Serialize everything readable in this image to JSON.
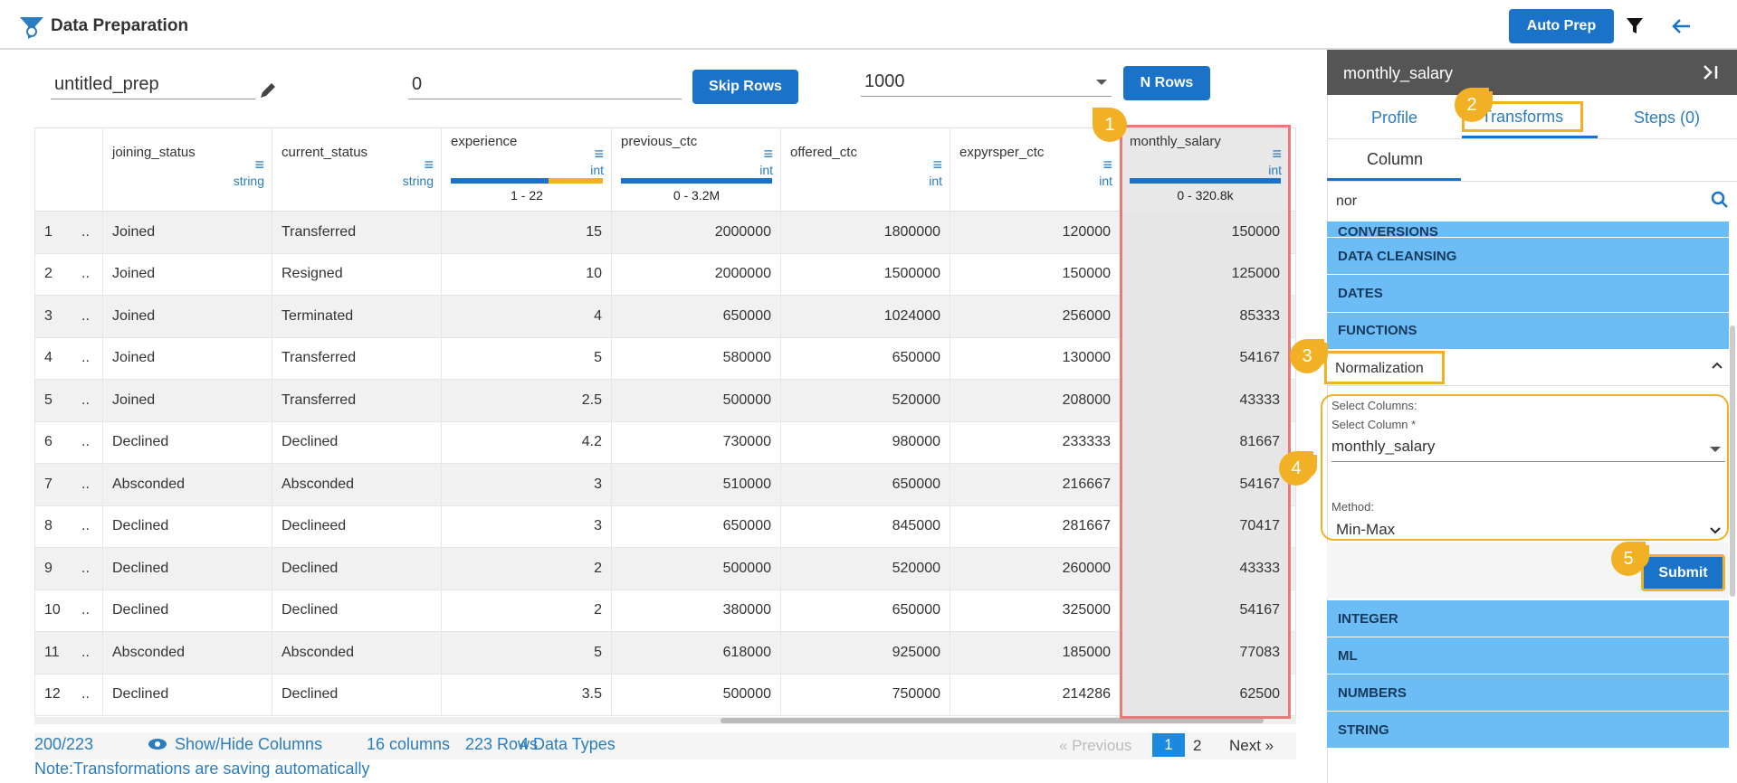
{
  "header": {
    "title": "Data Preparation",
    "auto_prep": "Auto Prep"
  },
  "toolbar": {
    "name": "untitled_prep",
    "skip_value": "0",
    "skip_button": "Skip Rows",
    "nrows_value": "1000",
    "nrows_button": "N Rows"
  },
  "table": {
    "cut_marker": "..",
    "columns": [
      {
        "name": "joining_status",
        "type": "string"
      },
      {
        "name": "current_status",
        "type": "string"
      },
      {
        "name": "experience",
        "type": "int",
        "range": "1 - 22"
      },
      {
        "name": "previous_ctc",
        "type": "int",
        "range": "0 - 3.2M"
      },
      {
        "name": "offered_ctc",
        "type": "int"
      },
      {
        "name": "expyrsper_ctc",
        "type": "int"
      },
      {
        "name": "monthly_salary",
        "type": "int",
        "range": "0 - 320.8k"
      }
    ],
    "rows": [
      [
        1,
        "Joined",
        "Transferred",
        15,
        2000000,
        1800000,
        120000,
        150000
      ],
      [
        2,
        "Joined",
        "Resigned",
        10,
        2000000,
        1500000,
        150000,
        125000
      ],
      [
        3,
        "Joined",
        "Terminated",
        4,
        650000,
        1024000,
        256000,
        85333
      ],
      [
        4,
        "Joined",
        "Transferred",
        5,
        580000,
        650000,
        130000,
        54167
      ],
      [
        5,
        "Joined",
        "Transferred",
        2.5,
        500000,
        520000,
        208000,
        43333
      ],
      [
        6,
        "Declined",
        "Declined",
        4.2,
        730000,
        980000,
        233333,
        81667
      ],
      [
        7,
        "Absconded",
        "Absconded",
        3,
        510000,
        650000,
        216667,
        54167
      ],
      [
        8,
        "Declined",
        "Declineed",
        3,
        650000,
        845000,
        281667,
        70417
      ],
      [
        9,
        "Declined",
        "Declined",
        2,
        500000,
        520000,
        260000,
        43333
      ],
      [
        10,
        "Declined",
        "Declined",
        2,
        380000,
        650000,
        325000,
        54167
      ],
      [
        11,
        "Absconded",
        "Absconded",
        5,
        618000,
        925000,
        185000,
        77083
      ],
      [
        12,
        "Declined",
        "Declined",
        3.5,
        500000,
        750000,
        214286,
        62500
      ]
    ]
  },
  "footer": {
    "count": "200/223",
    "show_hide": "Show/Hide Columns",
    "columns": "16 columns",
    "rows": "223 Rows",
    "types": "4 Data Types",
    "previous": "« Previous",
    "pages": [
      "1",
      "2"
    ],
    "next": "Next »",
    "note": "Note:Transformations are saving automatically"
  },
  "panel": {
    "title": "monthly_salary",
    "tabs": [
      "Profile",
      "Transforms",
      "Steps (0)"
    ],
    "subtab": "Column",
    "search": "nor",
    "categories_top": [
      "CONVERSIONS",
      "DATA CLEANSING",
      "DATES",
      "FUNCTIONS"
    ],
    "expanded": "Normalization",
    "form": {
      "select_columns": "Select Columns:",
      "select_column": "Select Column *",
      "column_value": "monthly_salary",
      "method_label": "Method:",
      "method_value": "Min-Max",
      "submit": "Submit"
    },
    "categories_bottom": [
      "INTEGER",
      "ML",
      "NUMBERS",
      "STRING"
    ]
  },
  "callouts": [
    "1",
    "2",
    "3",
    "4",
    "5"
  ]
}
